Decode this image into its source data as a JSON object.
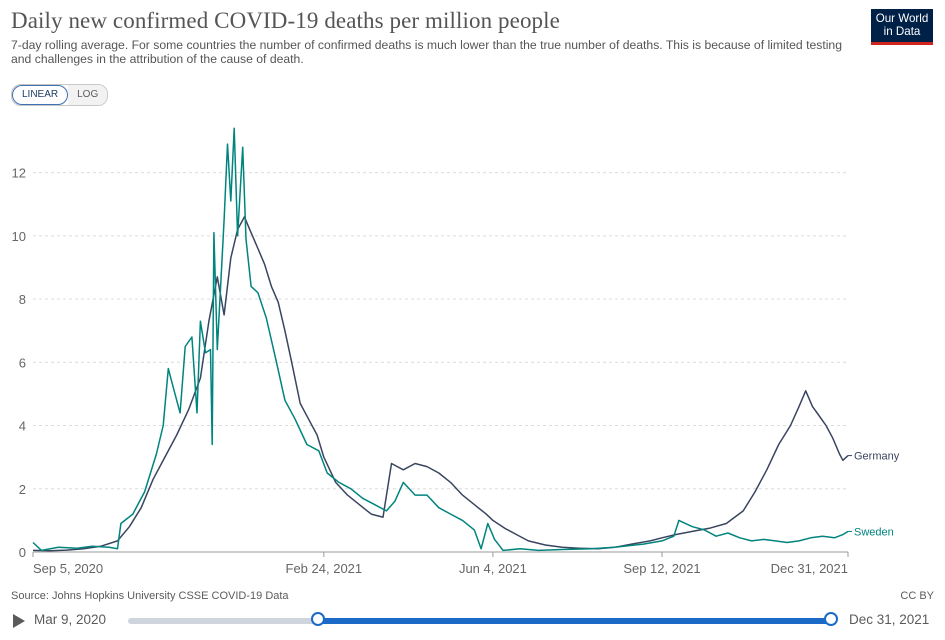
{
  "header": {
    "title": "Daily new confirmed COVID-19 deaths per million people",
    "subtitle": "7-day rolling average. For some countries the number of confirmed deaths is much lower than the true number of deaths. This is because of limited testing and challenges in the attribution of the cause of death.",
    "logo_line1": "Our World",
    "logo_line2": "in Data"
  },
  "scale_toggle": {
    "linear_label": "LINEAR",
    "log_label": "LOG",
    "selected": "LINEAR"
  },
  "footer": {
    "source": "Source: Johns Hopkins University CSSE COVID-19 Data",
    "license": "CC BY"
  },
  "timeline": {
    "start_label": "Mar 9, 2020",
    "end_label": "Dec 31, 2021",
    "start_fraction": 0.27,
    "end_fraction": 1.0
  },
  "colors": {
    "germany": "#3a4560",
    "sweden": "#00847e",
    "grid": "#dcdcdc",
    "accent": "#1b6ac8",
    "logo_bg": "#002147",
    "logo_bar": "#ce261e"
  },
  "chart_data": {
    "type": "line",
    "x_start": "2020-09-05",
    "x_end": "2021-12-31",
    "xticks": [
      {
        "date": "2020-09-05",
        "label": "Sep 5, 2020"
      },
      {
        "date": "2021-02-24",
        "label": "Feb 24, 2021"
      },
      {
        "date": "2021-06-04",
        "label": "Jun 4, 2021"
      },
      {
        "date": "2021-09-12",
        "label": "Sep 12, 2021"
      },
      {
        "date": "2021-12-31",
        "label": "Dec 31, 2021"
      }
    ],
    "yticks": [
      0,
      2,
      4,
      6,
      8,
      10,
      12
    ],
    "ylim": [
      0,
      13.6
    ],
    "grid": "horizontal dashed",
    "series": [
      {
        "name": "Germany",
        "color": "#3a4560",
        "points": [
          [
            "2020-09-05",
            0.05
          ],
          [
            "2020-09-15",
            0.04
          ],
          [
            "2020-09-25",
            0.06
          ],
          [
            "2020-10-05",
            0.1
          ],
          [
            "2020-10-15",
            0.18
          ],
          [
            "2020-10-25",
            0.35
          ],
          [
            "2020-11-01",
            0.8
          ],
          [
            "2020-11-08",
            1.4
          ],
          [
            "2020-11-15",
            2.3
          ],
          [
            "2020-11-22",
            3.0
          ],
          [
            "2020-11-29",
            3.7
          ],
          [
            "2020-12-06",
            4.5
          ],
          [
            "2020-12-13",
            5.5
          ],
          [
            "2020-12-18",
            7.3
          ],
          [
            "2020-12-23",
            8.7
          ],
          [
            "2020-12-27",
            7.5
          ],
          [
            "2020-12-31",
            9.3
          ],
          [
            "2021-01-04",
            10.2
          ],
          [
            "2021-01-08",
            10.6
          ],
          [
            "2021-01-12",
            10.1
          ],
          [
            "2021-01-16",
            9.6
          ],
          [
            "2021-01-20",
            9.1
          ],
          [
            "2021-01-24",
            8.4
          ],
          [
            "2021-01-28",
            7.9
          ],
          [
            "2021-02-01",
            7.0
          ],
          [
            "2021-02-05",
            6.0
          ],
          [
            "2021-02-10",
            4.7
          ],
          [
            "2021-02-15",
            4.2
          ],
          [
            "2021-02-20",
            3.7
          ],
          [
            "2021-02-24",
            3.0
          ],
          [
            "2021-03-03",
            2.2
          ],
          [
            "2021-03-10",
            1.8
          ],
          [
            "2021-03-17",
            1.5
          ],
          [
            "2021-03-24",
            1.2
          ],
          [
            "2021-03-31",
            1.1
          ],
          [
            "2021-04-05",
            2.8
          ],
          [
            "2021-04-12",
            2.6
          ],
          [
            "2021-04-19",
            2.8
          ],
          [
            "2021-04-26",
            2.7
          ],
          [
            "2021-05-03",
            2.5
          ],
          [
            "2021-05-10",
            2.2
          ],
          [
            "2021-05-17",
            1.8
          ],
          [
            "2021-05-24",
            1.5
          ],
          [
            "2021-05-31",
            1.2
          ],
          [
            "2021-06-04",
            1.0
          ],
          [
            "2021-06-11",
            0.75
          ],
          [
            "2021-06-18",
            0.55
          ],
          [
            "2021-06-25",
            0.35
          ],
          [
            "2021-07-05",
            0.22
          ],
          [
            "2021-07-15",
            0.15
          ],
          [
            "2021-07-25",
            0.12
          ],
          [
            "2021-08-05",
            0.1
          ],
          [
            "2021-08-15",
            0.15
          ],
          [
            "2021-08-25",
            0.25
          ],
          [
            "2021-09-05",
            0.35
          ],
          [
            "2021-09-12",
            0.45
          ],
          [
            "2021-09-20",
            0.55
          ],
          [
            "2021-09-30",
            0.65
          ],
          [
            "2021-10-10",
            0.75
          ],
          [
            "2021-10-20",
            0.9
          ],
          [
            "2021-10-30",
            1.3
          ],
          [
            "2021-11-06",
            1.9
          ],
          [
            "2021-11-13",
            2.6
          ],
          [
            "2021-11-20",
            3.4
          ],
          [
            "2021-11-27",
            4.0
          ],
          [
            "2021-12-02",
            4.6
          ],
          [
            "2021-12-06",
            5.1
          ],
          [
            "2021-12-10",
            4.6
          ],
          [
            "2021-12-14",
            4.3
          ],
          [
            "2021-12-18",
            4.0
          ],
          [
            "2021-12-22",
            3.6
          ],
          [
            "2021-12-26",
            3.1
          ],
          [
            "2021-12-28",
            2.9
          ],
          [
            "2021-12-31",
            3.05
          ]
        ]
      },
      {
        "name": "Sweden",
        "color": "#00847e",
        "points": [
          [
            "2020-09-05",
            0.3
          ],
          [
            "2020-09-10",
            0.05
          ],
          [
            "2020-09-20",
            0.15
          ],
          [
            "2020-10-01",
            0.12
          ],
          [
            "2020-10-10",
            0.18
          ],
          [
            "2020-10-20",
            0.15
          ],
          [
            "2020-10-25",
            0.1
          ],
          [
            "2020-10-27",
            0.9
          ],
          [
            "2020-11-03",
            1.2
          ],
          [
            "2020-11-10",
            1.9
          ],
          [
            "2020-11-17",
            3.1
          ],
          [
            "2020-11-21",
            4.0
          ],
          [
            "2020-11-24",
            5.8
          ],
          [
            "2020-11-27",
            5.2
          ],
          [
            "2020-12-01",
            4.4
          ],
          [
            "2020-12-04",
            6.5
          ],
          [
            "2020-12-08",
            6.8
          ],
          [
            "2020-12-11",
            4.4
          ],
          [
            "2020-12-13",
            7.3
          ],
          [
            "2020-12-16",
            6.3
          ],
          [
            "2020-12-19",
            6.4
          ],
          [
            "2020-12-20",
            3.4
          ],
          [
            "2020-12-21",
            10.1
          ],
          [
            "2020-12-23",
            6.4
          ],
          [
            "2020-12-27",
            10.5
          ],
          [
            "2020-12-29",
            12.9
          ],
          [
            "2020-12-31",
            11.1
          ],
          [
            "2021-01-02",
            13.4
          ],
          [
            "2021-01-04",
            10.0
          ],
          [
            "2021-01-07",
            12.8
          ],
          [
            "2021-01-09",
            9.9
          ],
          [
            "2021-01-12",
            8.4
          ],
          [
            "2021-01-16",
            8.2
          ],
          [
            "2021-01-21",
            7.4
          ],
          [
            "2021-01-27",
            6.0
          ],
          [
            "2021-02-01",
            4.8
          ],
          [
            "2021-02-07",
            4.2
          ],
          [
            "2021-02-14",
            3.4
          ],
          [
            "2021-02-21",
            3.2
          ],
          [
            "2021-02-26",
            2.5
          ],
          [
            "2021-03-05",
            2.2
          ],
          [
            "2021-03-12",
            2.0
          ],
          [
            "2021-03-19",
            1.7
          ],
          [
            "2021-03-26",
            1.5
          ],
          [
            "2021-04-02",
            1.3
          ],
          [
            "2021-04-07",
            1.6
          ],
          [
            "2021-04-12",
            2.2
          ],
          [
            "2021-04-19",
            1.8
          ],
          [
            "2021-04-26",
            1.8
          ],
          [
            "2021-05-03",
            1.4
          ],
          [
            "2021-05-10",
            1.2
          ],
          [
            "2021-05-17",
            1.0
          ],
          [
            "2021-05-24",
            0.7
          ],
          [
            "2021-05-28",
            0.1
          ],
          [
            "2021-06-01",
            0.9
          ],
          [
            "2021-06-05",
            0.4
          ],
          [
            "2021-06-10",
            0.05
          ],
          [
            "2021-06-20",
            0.1
          ],
          [
            "2021-07-01",
            0.05
          ],
          [
            "2021-07-15",
            0.08
          ],
          [
            "2021-08-01",
            0.1
          ],
          [
            "2021-08-15",
            0.15
          ],
          [
            "2021-09-01",
            0.25
          ],
          [
            "2021-09-12",
            0.35
          ],
          [
            "2021-09-19",
            0.5
          ],
          [
            "2021-09-22",
            1.0
          ],
          [
            "2021-09-30",
            0.8
          ],
          [
            "2021-10-07",
            0.7
          ],
          [
            "2021-10-14",
            0.5
          ],
          [
            "2021-10-21",
            0.6
          ],
          [
            "2021-10-28",
            0.45
          ],
          [
            "2021-11-04",
            0.35
          ],
          [
            "2021-11-11",
            0.4
          ],
          [
            "2021-11-18",
            0.35
          ],
          [
            "2021-11-25",
            0.3
          ],
          [
            "2021-12-02",
            0.35
          ],
          [
            "2021-12-09",
            0.45
          ],
          [
            "2021-12-16",
            0.5
          ],
          [
            "2021-12-23",
            0.45
          ],
          [
            "2021-12-28",
            0.55
          ],
          [
            "2021-12-31",
            0.65
          ]
        ]
      }
    ]
  }
}
